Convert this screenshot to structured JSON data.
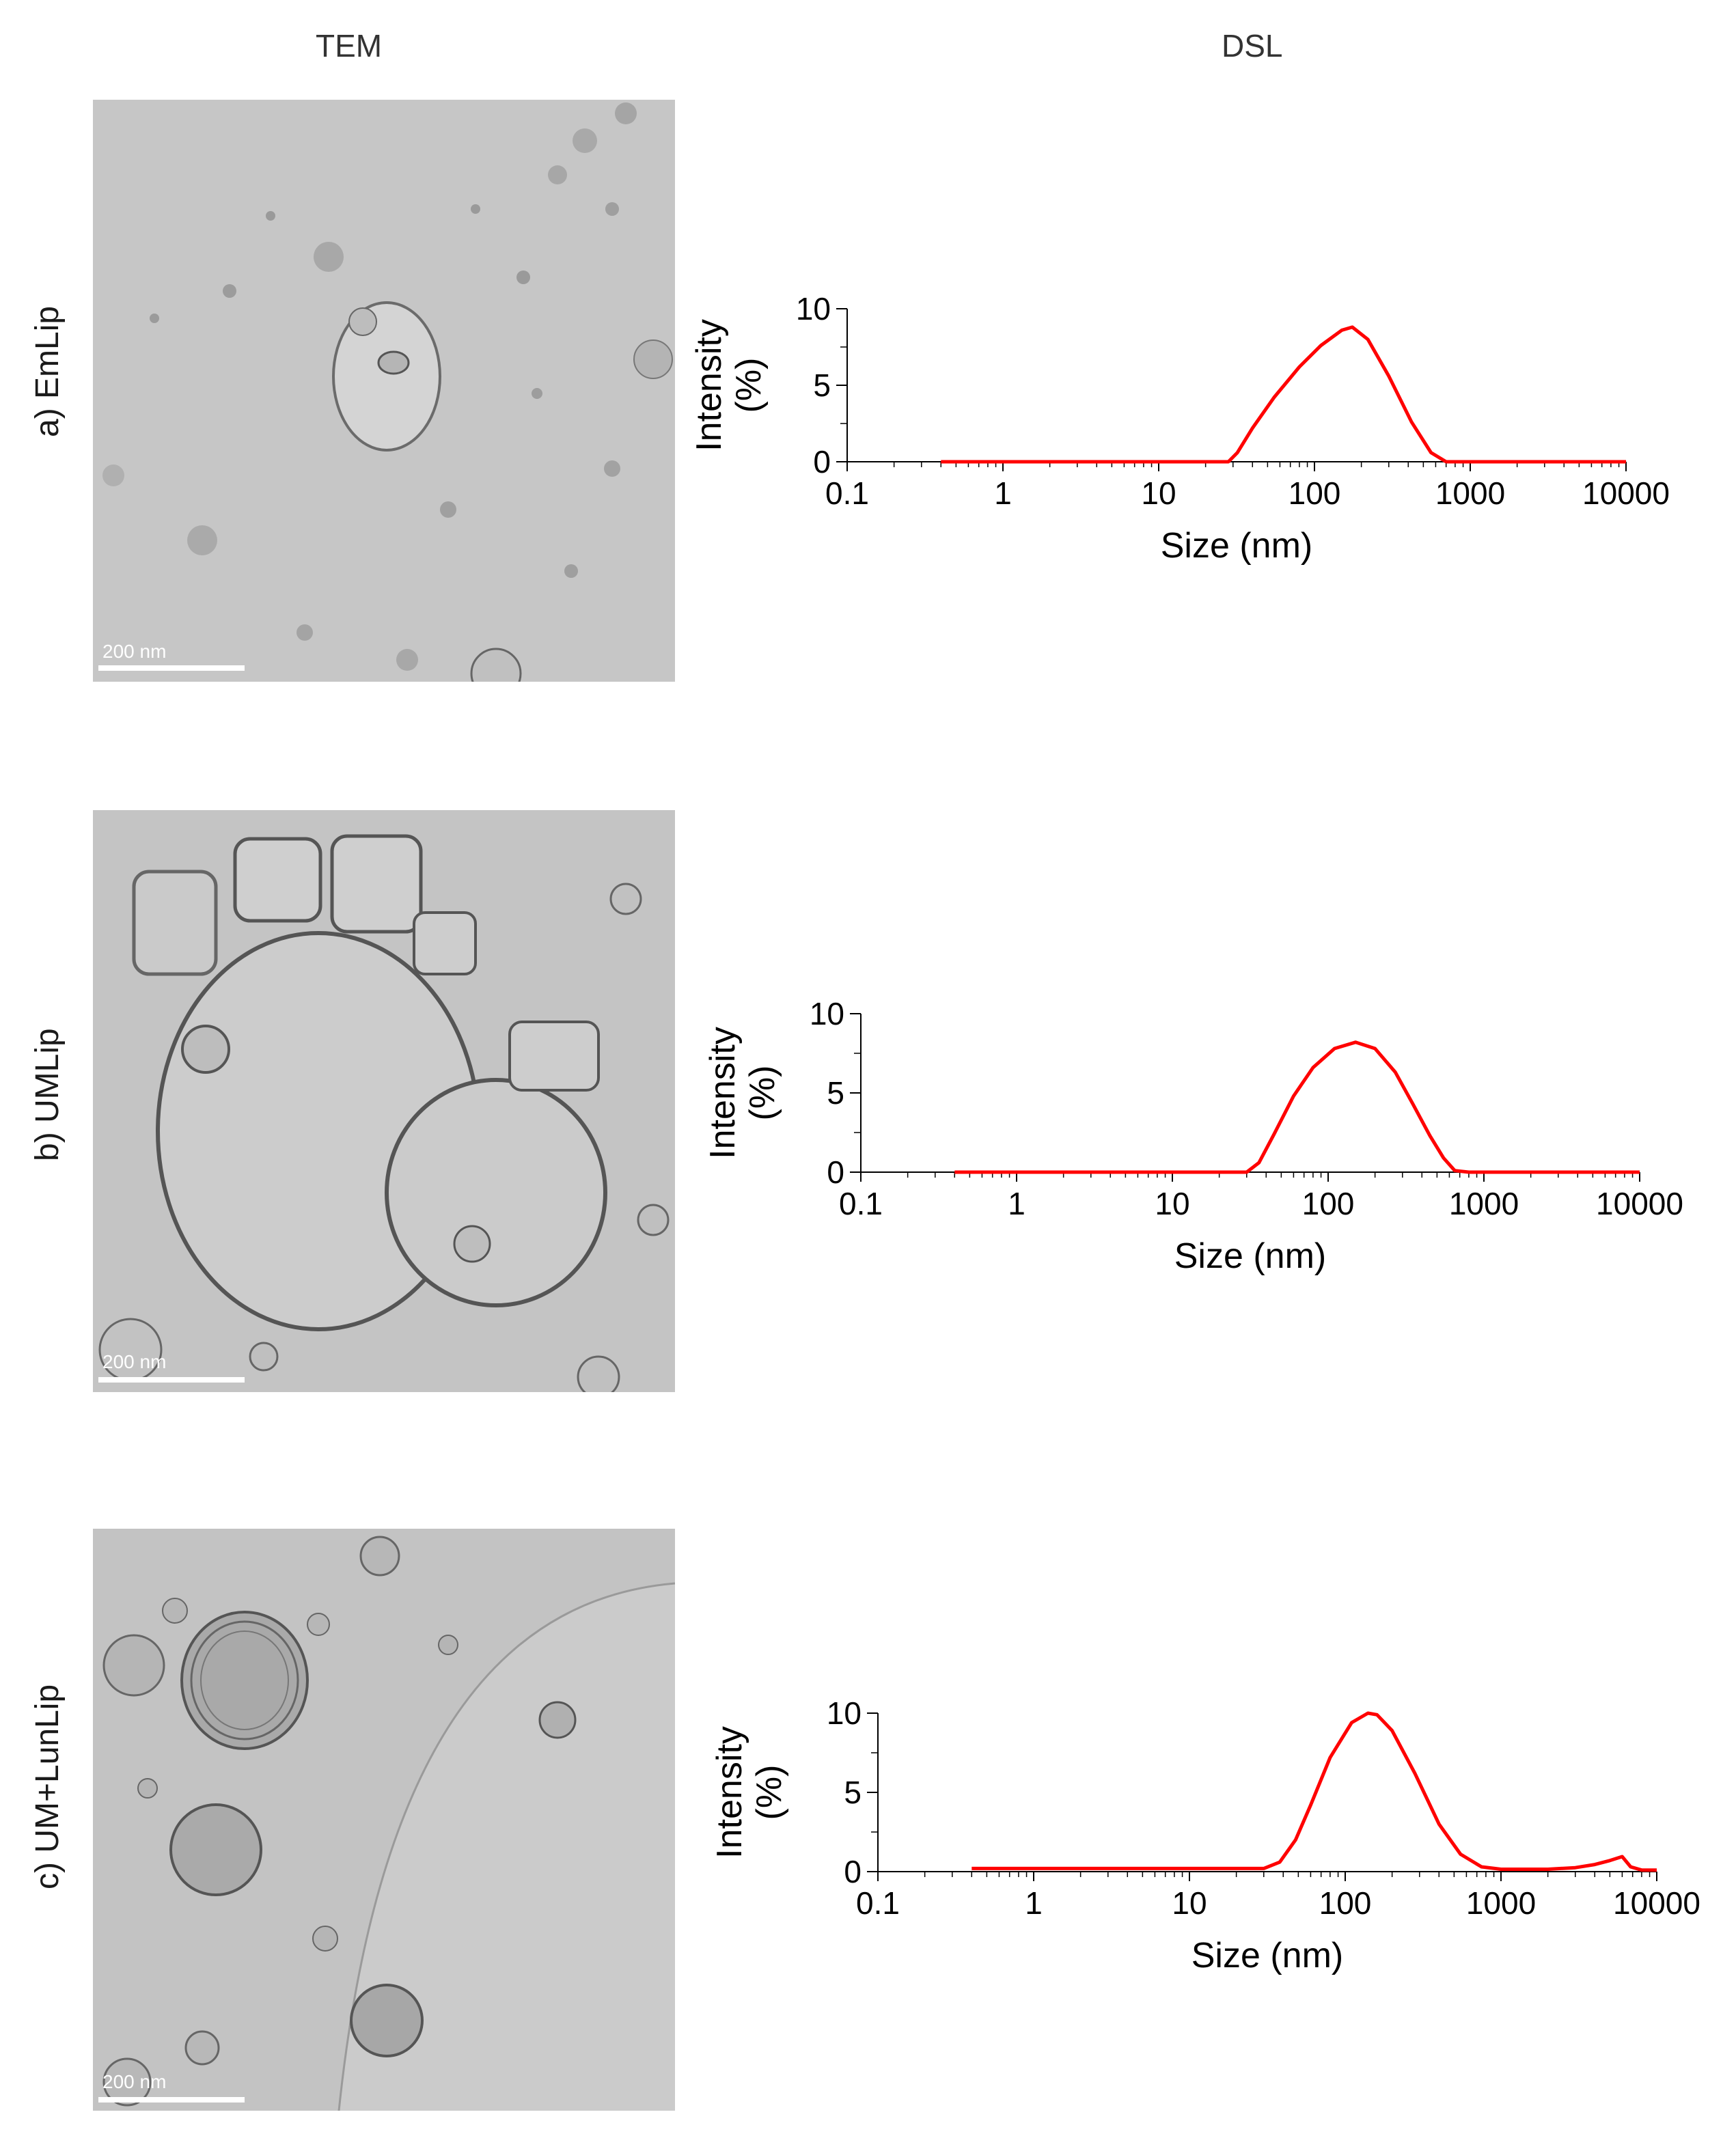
{
  "headers": {
    "tem": "TEM",
    "dsl": "DSL"
  },
  "rows": [
    {
      "label": "a) EmLip",
      "scale_bar": "200 nm"
    },
    {
      "label": "b) UMLip",
      "scale_bar": "200 nm"
    },
    {
      "label": "c) UM+LunLip",
      "scale_bar": "200 nm"
    }
  ],
  "chart_data": [
    {
      "type": "line",
      "title": "",
      "xlabel": "Size (nm)",
      "ylabel": "Intensity (%)",
      "ylabel_lines": [
        "Intensity",
        "(%)"
      ],
      "xscale": "log",
      "xlim": [
        0.1,
        10000
      ],
      "ylim": [
        0,
        10
      ],
      "xticks": [
        "0.1",
        "1",
        "10",
        "100",
        "1000",
        "10000"
      ],
      "yticks": [
        "0",
        "5",
        "10"
      ],
      "series": [
        {
          "color": "#ff0000",
          "x": [
            0.4,
            1,
            10,
            28,
            32,
            40,
            55,
            80,
            110,
            150,
            175,
            220,
            300,
            420,
            560,
            700,
            1000,
            3000,
            10000
          ],
          "y": [
            0,
            0,
            0,
            0,
            0.6,
            2.2,
            4.2,
            6.2,
            7.6,
            8.6,
            8.8,
            8.0,
            5.6,
            2.6,
            0.6,
            0,
            0,
            0,
            0
          ]
        }
      ]
    },
    {
      "type": "line",
      "title": "",
      "xlabel": "Size (nm)",
      "ylabel": "Intensity (%)",
      "ylabel_lines": [
        "Intensity",
        "(%)"
      ],
      "xscale": "log",
      "xlim": [
        0.1,
        10000
      ],
      "ylim": [
        0,
        10
      ],
      "xticks": [
        "0.1",
        "1",
        "10",
        "100",
        "1000",
        "10000"
      ],
      "yticks": [
        "0",
        "5",
        "10"
      ],
      "series": [
        {
          "color": "#ff0000",
          "x": [
            0.4,
            1,
            10,
            30,
            36,
            45,
            60,
            80,
            110,
            150,
            200,
            270,
            350,
            450,
            550,
            650,
            800,
            1000,
            3000,
            10000
          ],
          "y": [
            0,
            0,
            0,
            0,
            0.6,
            2.4,
            4.8,
            6.6,
            7.8,
            8.2,
            7.8,
            6.3,
            4.3,
            2.3,
            0.9,
            0.1,
            0,
            0,
            0,
            0
          ]
        }
      ]
    },
    {
      "type": "line",
      "title": "",
      "xlabel": "Size (nm)",
      "ylabel": "Intensity (%)",
      "ylabel_lines": [
        "Intensity",
        "(%)"
      ],
      "xscale": "log",
      "xlim": [
        0.1,
        10000
      ],
      "ylim": [
        0,
        10
      ],
      "xticks": [
        "0.1",
        "1",
        "10",
        "100",
        "1000",
        "10000"
      ],
      "yticks": [
        "0",
        "5",
        "10"
      ],
      "series": [
        {
          "color": "#ff0000",
          "x": [
            0.4,
            1,
            10,
            30,
            38,
            48,
            60,
            80,
            110,
            140,
            160,
            200,
            280,
            400,
            550,
            750,
            1000,
            2000,
            3000,
            4000,
            5000,
            6000,
            6800,
            8000,
            10000
          ],
          "y": [
            0.2,
            0.2,
            0.2,
            0.2,
            0.6,
            2.0,
            4.2,
            7.2,
            9.4,
            10.0,
            9.9,
            8.9,
            6.2,
            3.0,
            1.1,
            0.3,
            0.15,
            0.15,
            0.25,
            0.45,
            0.7,
            0.95,
            0.3,
            0.1,
            0.1
          ]
        }
      ]
    }
  ]
}
